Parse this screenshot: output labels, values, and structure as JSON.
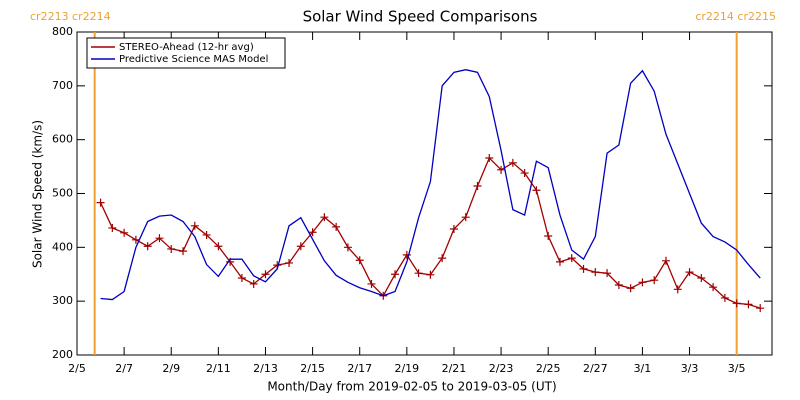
{
  "chart_data": {
    "type": "line",
    "title": "Solar Wind Speed Comparisons",
    "x_label": "Month/Day from 2019-02-05 to 2019-03-05 (UT)",
    "y_label": "Solar Wind Speed (km/s)",
    "x": [
      "2019-02-06T00:00",
      "2019-02-06T12:00",
      "2019-02-07T00:00",
      "2019-02-07T12:00",
      "2019-02-08T00:00",
      "2019-02-08T12:00",
      "2019-02-09T00:00",
      "2019-02-09T12:00",
      "2019-02-10T00:00",
      "2019-02-10T12:00",
      "2019-02-11T00:00",
      "2019-02-11T12:00",
      "2019-02-12T00:00",
      "2019-02-12T12:00",
      "2019-02-13T00:00",
      "2019-02-13T12:00",
      "2019-02-14T00:00",
      "2019-02-14T12:00",
      "2019-02-15T00:00",
      "2019-02-15T12:00",
      "2019-02-16T00:00",
      "2019-02-16T12:00",
      "2019-02-17T00:00",
      "2019-02-17T12:00",
      "2019-02-18T00:00",
      "2019-02-18T12:00",
      "2019-02-19T00:00",
      "2019-02-19T12:00",
      "2019-02-20T00:00",
      "2019-02-20T12:00",
      "2019-02-21T00:00",
      "2019-02-21T12:00",
      "2019-02-22T00:00",
      "2019-02-22T12:00",
      "2019-02-23T00:00",
      "2019-02-23T12:00",
      "2019-02-24T00:00",
      "2019-02-24T12:00",
      "2019-02-25T00:00",
      "2019-02-25T12:00",
      "2019-02-26T00:00",
      "2019-02-26T12:00",
      "2019-02-27T00:00",
      "2019-02-27T12:00",
      "2019-02-28T00:00",
      "2019-02-28T12:00",
      "2019-03-01T00:00",
      "2019-03-01T12:00",
      "2019-03-02T00:00",
      "2019-03-02T12:00",
      "2019-03-03T00:00",
      "2019-03-03T12:00",
      "2019-03-04T00:00",
      "2019-03-04T12:00",
      "2019-03-05T00:00",
      "2019-03-05T12:00",
      "2019-03-06T00:00"
    ],
    "series": [
      {
        "name": "STEREO-Ahead (12-hr avg)",
        "color": "#a00000",
        "markers": true,
        "values": [
          483,
          436,
          427,
          414,
          402,
          417,
          397,
          393,
          440,
          423,
          402,
          373,
          343,
          332,
          350,
          367,
          371,
          402,
          428,
          456,
          438,
          400,
          376,
          332,
          310,
          350,
          386,
          352,
          349,
          380,
          434,
          456,
          514,
          566,
          544,
          557,
          538,
          506,
          421,
          373,
          380,
          360,
          354,
          352,
          330,
          324,
          335,
          339,
          375,
          322,
          354,
          343,
          326,
          306,
          296,
          294,
          287
        ]
      },
      {
        "name": "Predictive Science MAS Model",
        "color": "#0000c0",
        "markers": false,
        "values": [
          305,
          303,
          318,
          400,
          448,
          458,
          460,
          448,
          420,
          368,
          346,
          378,
          378,
          347,
          336,
          360,
          440,
          455,
          415,
          375,
          348,
          335,
          325,
          318,
          310,
          318,
          373,
          455,
          522,
          700,
          725,
          730,
          725,
          680,
          580,
          470,
          460,
          560,
          548,
          460,
          395,
          378,
          420,
          575,
          590,
          705,
          728,
          690,
          610,
          555,
          500,
          445,
          420,
          410,
          395,
          368,
          343
        ]
      }
    ],
    "xlim": [
      "2019-02-05T00:00",
      "2019-03-06T12:00"
    ],
    "xticks": [
      {
        "value": "2019-02-05T00:00",
        "label": "2/5"
      },
      {
        "value": "2019-02-07T00:00",
        "label": "2/7"
      },
      {
        "value": "2019-02-09T00:00",
        "label": "2/9"
      },
      {
        "value": "2019-02-11T00:00",
        "label": "2/11"
      },
      {
        "value": "2019-02-13T00:00",
        "label": "2/13"
      },
      {
        "value": "2019-02-15T00:00",
        "label": "2/15"
      },
      {
        "value": "2019-02-17T00:00",
        "label": "2/17"
      },
      {
        "value": "2019-02-19T00:00",
        "label": "2/19"
      },
      {
        "value": "2019-02-21T00:00",
        "label": "2/21"
      },
      {
        "value": "2019-02-23T00:00",
        "label": "2/23"
      },
      {
        "value": "2019-02-25T00:00",
        "label": "2/25"
      },
      {
        "value": "2019-02-27T00:00",
        "label": "2/27"
      },
      {
        "value": "2019-03-01T00:00",
        "label": "3/1"
      },
      {
        "value": "2019-03-03T00:00",
        "label": "3/3"
      },
      {
        "value": "2019-03-05T00:00",
        "label": "3/5"
      }
    ],
    "ylim": [
      200,
      800
    ],
    "yticks": [
      200,
      300,
      400,
      500,
      600,
      700,
      800
    ],
    "vlines": [
      {
        "x": "2019-02-05T18:00",
        "label": "cr2213 cr2214",
        "color": "#f0a030"
      },
      {
        "x": "2019-03-05T00:00",
        "label": "cr2214 cr2215",
        "color": "#f0a030"
      }
    ],
    "legend": "upper left"
  }
}
